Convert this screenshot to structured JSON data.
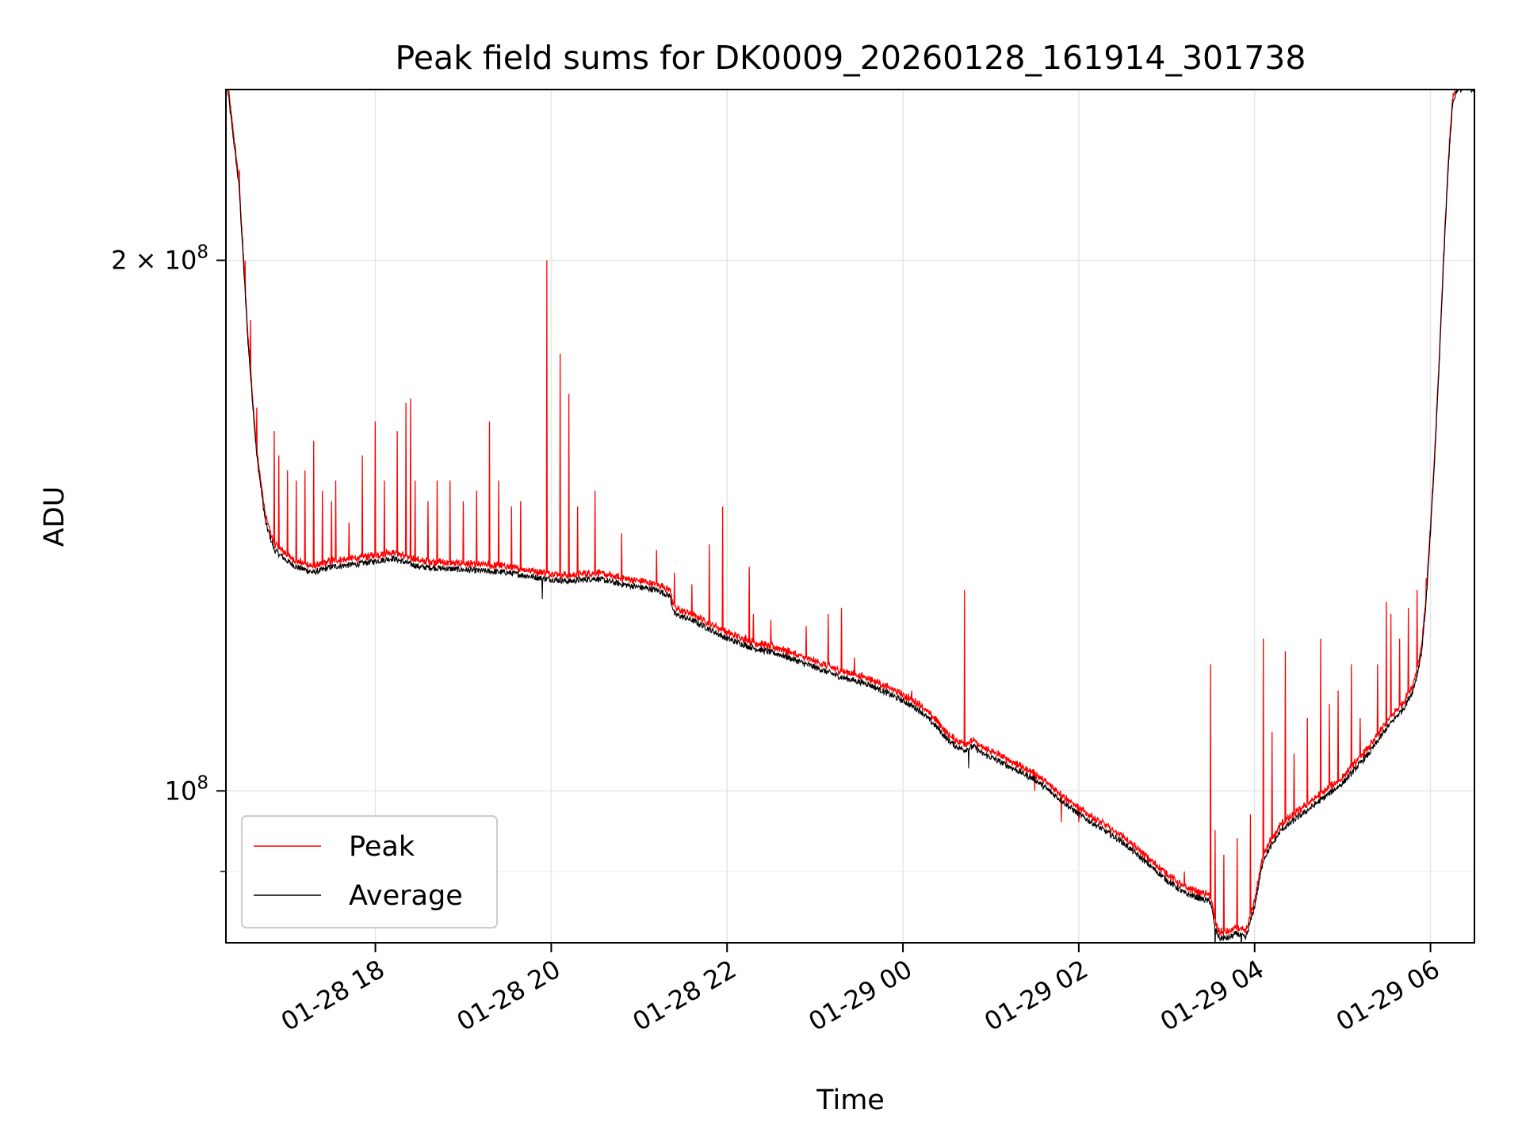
{
  "chart_data": {
    "type": "line",
    "title": "Peak field sums for DK0009_20260128_161914_301738",
    "xlabel": "Time",
    "ylabel": "ADU",
    "y_scale": "log",
    "x_unit": "hours since 01-28 00:00",
    "xlim": [
      16.3,
      30.5
    ],
    "ylim": [
      82000000,
      250000000
    ],
    "x_ticks": [
      {
        "value": 18,
        "label": "01-28 18"
      },
      {
        "value": 20,
        "label": "01-28 20"
      },
      {
        "value": 22,
        "label": "01-28 22"
      },
      {
        "value": 24,
        "label": "01-29 00"
      },
      {
        "value": 26,
        "label": "01-29 02"
      },
      {
        "value": 28,
        "label": "01-29 04"
      },
      {
        "value": 30,
        "label": "01-29 06"
      }
    ],
    "y_ticks_major": [
      {
        "value": 100000000,
        "label_base": "10",
        "label_exp": "8"
      },
      {
        "value": 200000000,
        "label_base": "2 × 10",
        "label_exp": "8"
      }
    ],
    "y_ticks_minor": [
      90000000,
      300000000
    ],
    "grid": true,
    "legend": {
      "position": "lower-left"
    },
    "series": [
      {
        "name": "Peak",
        "color": "#ff0000"
      },
      {
        "name": "Average",
        "color": "#000000"
      }
    ],
    "average_profile": {
      "x": [
        16.32,
        16.45,
        16.55,
        16.65,
        16.75,
        16.85,
        17.0,
        17.1,
        17.3,
        17.5,
        17.8,
        18.0,
        18.2,
        18.5,
        19.0,
        19.5,
        19.9,
        20.2,
        20.5,
        20.8,
        21.0,
        21.2,
        21.35,
        21.4,
        21.6,
        21.8,
        22.0,
        22.3,
        22.6,
        23.0,
        23.3,
        23.6,
        24.0,
        24.2,
        24.4,
        24.5,
        24.6,
        24.7,
        24.8,
        24.9,
        25.0,
        25.5,
        26.0,
        26.5,
        27.0,
        27.2,
        27.5,
        27.55,
        27.6,
        27.7,
        27.8,
        27.9,
        28.0,
        28.1,
        28.3,
        28.6,
        29.0,
        29.3,
        29.5,
        29.6,
        29.7,
        29.8,
        29.85,
        29.9,
        29.95,
        30.0,
        30.05,
        30.1,
        30.15,
        30.2,
        30.25,
        30.3,
        30.5
      ],
      "y": [
        250000000,
        220000000,
        180000000,
        155000000,
        142000000,
        137000000,
        135000000,
        134000000,
        133000000,
        134000000,
        134500000,
        135000000,
        135500000,
        134000000,
        133500000,
        133000000,
        132000000,
        131500000,
        132000000,
        131000000,
        130500000,
        130000000,
        129000000,
        126000000,
        125000000,
        123500000,
        122000000,
        120500000,
        119500000,
        117500000,
        116000000,
        115000000,
        112500000,
        111000000,
        108500000,
        107000000,
        106000000,
        105500000,
        106000000,
        105000000,
        104500000,
        101500000,
        97000000,
        93500000,
        89000000,
        87500000,
        86500000,
        83500000,
        82500000,
        82500000,
        83000000,
        82500000,
        86000000,
        91500000,
        95000000,
        97500000,
        101000000,
        105000000,
        108500000,
        110000000,
        111500000,
        114000000,
        116500000,
        120000000,
        128000000,
        140000000,
        155000000,
        175000000,
        200000000,
        225000000,
        245000000,
        250000000,
        250000000
      ],
      "noise_fraction": 0.004,
      "samples": 3000
    },
    "peak_offset_fraction": 0.006,
    "peak_spikes": [
      [
        16.45,
        225000000
      ],
      [
        16.52,
        200000000
      ],
      [
        16.58,
        185000000
      ],
      [
        16.65,
        165000000
      ],
      [
        16.85,
        160000000
      ],
      [
        16.9,
        155000000
      ],
      [
        17.0,
        152000000
      ],
      [
        17.1,
        150000000
      ],
      [
        17.2,
        152000000
      ],
      [
        17.3,
        158000000
      ],
      [
        17.4,
        148000000
      ],
      [
        17.5,
        146000000
      ],
      [
        17.55,
        150000000
      ],
      [
        17.7,
        142000000
      ],
      [
        17.85,
        155000000
      ],
      [
        18.0,
        162000000
      ],
      [
        18.1,
        150000000
      ],
      [
        18.25,
        160000000
      ],
      [
        18.35,
        166000000
      ],
      [
        18.4,
        167000000
      ],
      [
        18.45,
        150000000
      ],
      [
        18.6,
        146000000
      ],
      [
        18.7,
        150000000
      ],
      [
        18.85,
        150000000
      ],
      [
        19.0,
        146000000
      ],
      [
        19.15,
        148000000
      ],
      [
        19.3,
        162000000
      ],
      [
        19.4,
        150000000
      ],
      [
        19.55,
        145000000
      ],
      [
        19.65,
        146000000
      ],
      [
        19.95,
        200000000
      ],
      [
        20.1,
        177000000
      ],
      [
        20.2,
        168000000
      ],
      [
        20.3,
        145000000
      ],
      [
        20.5,
        148000000
      ],
      [
        20.8,
        140000000
      ],
      [
        21.2,
        137000000
      ],
      [
        21.4,
        133000000
      ],
      [
        21.6,
        131000000
      ],
      [
        21.8,
        138000000
      ],
      [
        21.95,
        145000000
      ],
      [
        22.25,
        134000000
      ],
      [
        22.3,
        126000000
      ],
      [
        22.5,
        125000000
      ],
      [
        22.9,
        124000000
      ],
      [
        23.15,
        126000000
      ],
      [
        23.3,
        127000000
      ],
      [
        23.45,
        119000000
      ],
      [
        23.65,
        116000000
      ],
      [
        24.1,
        114000000
      ],
      [
        24.7,
        130000000
      ],
      [
        25.3,
        104000000
      ],
      [
        25.5,
        100000000
      ],
      [
        25.8,
        96000000
      ],
      [
        26.0,
        96000000
      ],
      [
        27.0,
        90000000
      ],
      [
        27.2,
        90000000
      ],
      [
        27.5,
        118000000
      ],
      [
        27.55,
        95000000
      ],
      [
        27.65,
        92000000
      ],
      [
        27.8,
        94000000
      ],
      [
        27.95,
        97000000
      ],
      [
        28.1,
        122000000
      ],
      [
        28.2,
        108000000
      ],
      [
        28.35,
        120000000
      ],
      [
        28.45,
        105000000
      ],
      [
        28.6,
        110000000
      ],
      [
        28.75,
        122000000
      ],
      [
        28.85,
        112000000
      ],
      [
        28.95,
        114000000
      ],
      [
        29.1,
        118000000
      ],
      [
        29.2,
        110000000
      ],
      [
        29.4,
        118000000
      ],
      [
        29.5,
        128000000
      ],
      [
        29.55,
        126000000
      ],
      [
        29.65,
        122000000
      ],
      [
        29.75,
        127000000
      ],
      [
        29.85,
        130000000
      ],
      [
        29.95,
        132000000
      ]
    ],
    "average_dips": [
      [
        19.9,
        128500000
      ],
      [
        24.75,
        103000000
      ],
      [
        27.55,
        81000000
      ],
      [
        27.85,
        80500000
      ]
    ]
  }
}
